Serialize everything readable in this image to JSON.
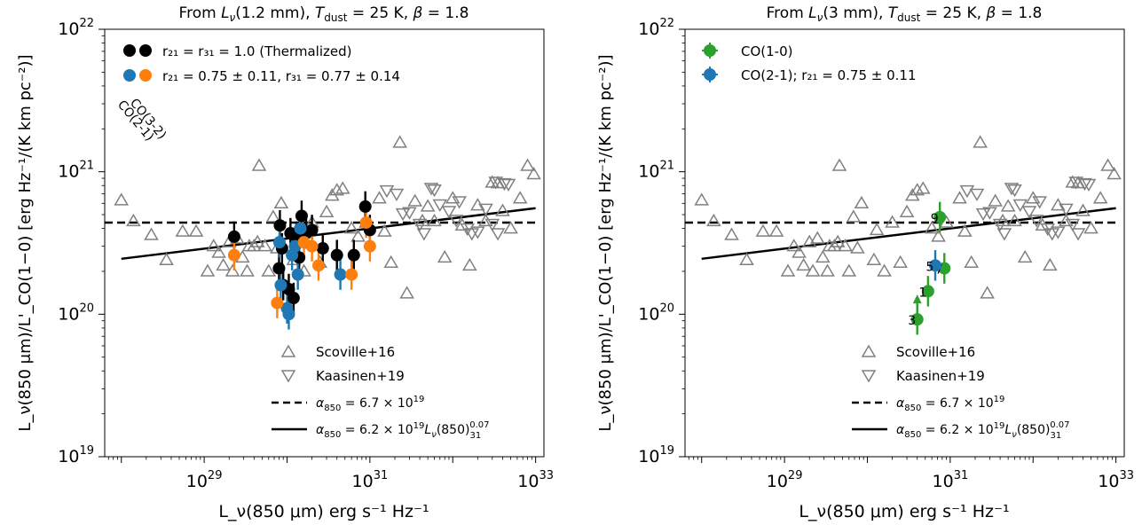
{
  "figure": {
    "panels": [
      {
        "title": "From L_ν(1.2 mm), T_dust = 25 K, β = 1.8",
        "title_parts": {
          "pre": "From ",
          "L": "L",
          "nu": "ν",
          "mid": "(1.2 mm), ",
          "T": "T",
          "dust": "dust",
          "post1": " = 25 K, ",
          "beta": "β",
          "post2": " = 1.8"
        },
        "ylabel": "L_ν(850 μm)/L'_CO(1−0) [erg Hz⁻¹/(K km pc⁻²)]",
        "xlabel": "L_ν(850 μm) erg s⁻¹ Hz⁻¹"
      },
      {
        "title": "From L_ν(3 mm), T_dust = 25 K, β = 1.8",
        "title_parts": {
          "pre": "From ",
          "L": "L",
          "nu": "ν",
          "mid": "(3 mm), ",
          "T": "T",
          "dust": "dust",
          "post1": " = 25 K, ",
          "beta": "β",
          "post2": " = 1.8"
        },
        "ylabel": "L_ν(850 μm)/L'_CO(1−0) [erg Hz⁻¹/(K km pc⁻²)]",
        "xlabel": "L_ν(850 μm) erg s⁻¹ Hz⁻¹"
      }
    ],
    "x_tick_labels": [
      {
        "base": "10",
        "exp": "29",
        "value": 1e+29
      },
      {
        "base": "10",
        "exp": "31",
        "value": 1e+31
      },
      {
        "base": "10",
        "exp": "33",
        "value": 1e+33
      }
    ],
    "y_tick_labels": [
      {
        "base": "10",
        "exp": "19",
        "value": 1e+19
      },
      {
        "base": "10",
        "exp": "20",
        "value": 1e+20
      },
      {
        "base": "10",
        "exp": "21",
        "value": 1e+21
      },
      {
        "base": "10",
        "exp": "22",
        "value": 1e+22
      }
    ],
    "legend_left": {
      "thermalized": "r₂₁ = r₃₁ = 1.0 (Thermalized)",
      "measured": "r₂₁ = 0.75 ± 0.11, r₃₁ = 0.77 ± 0.14",
      "co32": "CO(3-2)",
      "co21": "CO(2-1)"
    },
    "legend_right": {
      "co10": "CO(1-0)",
      "co21": "CO(2-1); r₂₁ = 0.75 ± 0.11"
    },
    "legend_lower": {
      "scoville": "Scoville+16",
      "kaasinen": "Kaasinen+19",
      "alpha_const": "α₈₅₀ = 6.7 × 10¹⁹",
      "alpha_fit": "α₈₅₀ = 6.2 × 10¹⁹ L_ν(850)₃₁^0.07"
    },
    "source_labels": [
      "9",
      "5",
      "7",
      "1",
      "3"
    ]
  },
  "colors": {
    "thermalized": "#000000",
    "co21": "#1f77b4",
    "co32": "#ff7f0e",
    "co10": "#2ca02c",
    "comparison": "#808080"
  },
  "chart_data": [
    {
      "type": "scatter",
      "title": "From L_ν(1.2 mm), T_dust = 25 K, β = 1.8",
      "xlabel": "L_ν(850 μm) erg s⁻¹ Hz⁻¹",
      "ylabel": "L_ν(850 μm)/L'_CO(1−0) [erg Hz⁻¹/(K km pc⁻²)]",
      "xscale": "log",
      "yscale": "log",
      "xlim": [
        6.3e+27,
        1.26e+33
      ],
      "ylim": [
        1e+19,
        1e+22
      ],
      "grid": false,
      "legend": "upper-left and lower-center",
      "series": [
        {
          "name": "Scoville+16",
          "marker": "triangle-up",
          "color": "#808080",
          "points": [
            [
              1e+28,
              6.3e+20
            ],
            [
              1.4e+28,
              4.5e+20
            ],
            [
              2.3e+28,
              3.6e+20
            ],
            [
              3.5e+28,
              2.4e+20
            ],
            [
              5.5e+28,
              3.8e+20
            ],
            [
              8e+28,
              3.8e+20
            ],
            [
              1.1e+29,
              2e+20
            ],
            [
              1.3e+29,
              3e+20
            ],
            [
              1.5e+29,
              2.7e+20
            ],
            [
              1.7e+29,
              2.2e+20
            ],
            [
              2e+29,
              3.2e+20
            ],
            [
              2.2e+29,
              2e+20
            ],
            [
              2.5e+29,
              3.4e+20
            ],
            [
              2.9e+29,
              2.5e+20
            ],
            [
              3.3e+29,
              2e+20
            ],
            [
              3.5e+29,
              3e+20
            ],
            [
              4e+29,
              3e+20
            ],
            [
              4.4e+29,
              3.2e+20
            ],
            [
              4.6e+29,
              1.1e+21
            ],
            [
              5.4e+29,
              3e+20
            ],
            [
              6e+29,
              2e+20
            ],
            [
              6.8e+29,
              4.8e+20
            ],
            [
              7.6e+29,
              2.9e+20
            ],
            [
              8.5e+29,
              6e+20
            ],
            [
              1.2e+30,
              2.4e+20
            ],
            [
              1.3e+30,
              3.9e+20
            ],
            [
              1.6e+30,
              2e+20
            ],
            [
              2e+30,
              4.4e+20
            ],
            [
              2.5e+30,
              2.3e+20
            ],
            [
              3e+30,
              5.2e+20
            ],
            [
              3.5e+30,
              6.8e+20
            ],
            [
              4e+30,
              7.4e+20
            ],
            [
              4.7e+30,
              7.6e+20
            ],
            [
              6e+30,
              4e+20
            ],
            [
              7.2e+30,
              3.5e+20
            ],
            [
              9e+30,
              4.4e+20
            ],
            [
              1.3e+31,
              6.5e+20
            ],
            [
              1.5e+31,
              3.8e+20
            ],
            [
              1.8e+31,
              2.3e+20
            ],
            [
              2.3e+31,
              1.6e+21
            ],
            [
              2.8e+31,
              1.4e+20
            ],
            [
              3.5e+31,
              6.2e+20
            ],
            [
              4.3e+31,
              4.5e+20
            ],
            [
              5e+31,
              5.7e+20
            ],
            [
              6e+31,
              4.5e+20
            ],
            [
              8e+31,
              2.5e+20
            ],
            [
              1e+32,
              6.5e+20
            ],
            [
              1.3e+32,
              4.2e+20
            ],
            [
              1.6e+32,
              2.2e+20
            ],
            [
              2e+32,
              5.8e+20
            ],
            [
              2.5e+32,
              4.5e+20
            ],
            [
              3e+32,
              8.4e+20
            ],
            [
              3.5e+32,
              8.3e+20
            ],
            [
              4e+32,
              5.3e+20
            ],
            [
              5e+32,
              4e+20
            ],
            [
              6.5e+32,
              6.5e+20
            ],
            [
              8e+32,
              1.1e+21
            ],
            [
              9.5e+32,
              9.6e+20
            ]
          ]
        },
        {
          "name": "Kaasinen+19",
          "marker": "triangle-down",
          "color": "#808080",
          "points": [
            [
              1.6e+31,
              7.4e+20
            ],
            [
              2.1e+31,
              7e+20
            ],
            [
              2.5e+31,
              5.1e+20
            ],
            [
              3e+31,
              5.2e+20
            ],
            [
              4e+31,
              4.3e+20
            ],
            [
              4.5e+31,
              3.7e+20
            ],
            [
              5.5e+31,
              7.7e+20
            ],
            [
              6e+31,
              7.5e+20
            ],
            [
              7e+31,
              5.9e+20
            ],
            [
              9e+31,
              5.3e+20
            ],
            [
              1.1e+32,
              4.6e+20
            ],
            [
              1.2e+32,
              6.2e+20
            ],
            [
              1.5e+32,
              4e+20
            ],
            [
              1.7e+32,
              3.7e+20
            ],
            [
              2e+32,
              3.8e+20
            ],
            [
              2.5e+32,
              5.5e+20
            ],
            [
              3e+32,
              4.3e+20
            ],
            [
              3.5e+32,
              3.7e+20
            ],
            [
              4.2e+32,
              8.3e+20
            ],
            [
              4.7e+32,
              8.2e+20
            ],
            [
              3.3e+32,
              8.5e+20
            ]
          ]
        },
        {
          "name": "r₂₁ = r₃₁ = 1.0 (Thermalized)",
          "marker": "circle",
          "color": "#000000",
          "points": [
            [
              2.3e+29,
              3.5e+20
            ],
            [
              8e+29,
              2.1e+20
            ],
            [
              8.2e+29,
              4.2e+20
            ],
            [
              8.7e+29,
              2.9e+20
            ],
            [
              9e+29,
              1.6e+20
            ],
            [
              1.05e+30,
              1.5e+20
            ],
            [
              1.1e+30,
              3.7e+20
            ],
            [
              1.2e+30,
              1.3e+20
            ],
            [
              1.3e+30,
              3.5e+20
            ],
            [
              1.4e+30,
              2.5e+20
            ],
            [
              1.5e+30,
              4.9e+20
            ],
            [
              1.7e+30,
              3.7e+20
            ],
            [
              2e+30,
              3.9e+20
            ],
            [
              2.7e+30,
              2.9e+20
            ],
            [
              4e+30,
              2.6e+20
            ],
            [
              6.4e+30,
              2.6e+20
            ],
            [
              8.8e+30,
              5.7e+20
            ],
            [
              1e+31,
              3.9e+20
            ]
          ]
        },
        {
          "name": "CO(2-1)",
          "marker": "circle",
          "color": "#1f77b4",
          "points": [
            [
              8.1e+29,
              3.2e+20
            ],
            [
              8.4e+29,
              1.6e+20
            ],
            [
              1e+30,
              1.1e+20
            ],
            [
              1.05e+30,
              1e+20
            ],
            [
              1.15e+30,
              2.6e+20
            ],
            [
              1.25e+30,
              3e+20
            ],
            [
              1.35e+30,
              1.9e+20
            ],
            [
              1.45e+30,
              4e+20
            ],
            [
              4.4e+30,
              1.9e+20
            ]
          ]
        },
        {
          "name": "CO(3-2)",
          "marker": "circle",
          "color": "#ff7f0e",
          "points": [
            [
              2.3e+29,
              2.6e+20
            ],
            [
              7.6e+29,
              1.2e+20
            ],
            [
              1.6e+30,
              3.2e+20
            ],
            [
              2e+30,
              3e+20
            ],
            [
              2.4e+30,
              2.2e+20
            ],
            [
              6e+30,
              1.9e+20
            ],
            [
              9e+30,
              4.4e+20
            ],
            [
              1e+31,
              3e+20
            ]
          ]
        },
        {
          "name": "α₈₅₀ = 6.7 × 10¹⁹",
          "line": "dashed",
          "color": "#000000",
          "x": [
            6.3e+27,
            1e+33
          ],
          "y": [
            4.4e+20,
            4.4e+20
          ]
        },
        {
          "name": "α₈₅₀ = 6.2 × 10¹⁹ L_ν(850)₃₁^0.07",
          "line": "solid",
          "color": "#000000",
          "x": [
            1e+28,
            1e+33
          ],
          "y": [
            2.45e+20,
            5.55e+20
          ]
        }
      ]
    },
    {
      "type": "scatter",
      "title": "From L_ν(3 mm), T_dust = 25 K, β = 1.8",
      "xlabel": "L_ν(850 μm) erg s⁻¹ Hz⁻¹",
      "ylabel": "L_ν(850 μm)/L'_CO(1−0) [erg Hz⁻¹/(K km pc⁻²)]",
      "xscale": "log",
      "yscale": "log",
      "xlim": [
        6.3e+27,
        1.26e+33
      ],
      "ylim": [
        1e+19,
        1e+22
      ],
      "grid": false,
      "legend": "upper-left and lower-center",
      "series": [
        {
          "name": "Scoville+16",
          "marker": "triangle-up",
          "color": "#808080",
          "points": "same as left panel"
        },
        {
          "name": "Kaasinen+19",
          "marker": "triangle-down",
          "color": "#808080",
          "points": "same as left panel"
        },
        {
          "name": "CO(1-0)",
          "marker": "circle",
          "color": "#2ca02c",
          "points": [
            [
              4e+30,
              9.2e+19,
              "3"
            ],
            [
              5.4e+30,
              1.45e+20,
              "1"
            ],
            [
              7.5e+30,
              4.8e+20,
              "9"
            ],
            [
              8.5e+30,
              2.1e+20,
              "7"
            ]
          ]
        },
        {
          "name": "CO(2-1); r₂₁ = 0.75 ± 0.11",
          "marker": "circle",
          "color": "#1f77b4",
          "points": [
            [
              6.6e+30,
              2.2e+20,
              "5"
            ]
          ]
        },
        {
          "name": "α₈₅₀ = 6.7 × 10¹⁹",
          "line": "dashed",
          "color": "#000000",
          "x": [
            6.3e+27,
            1e+33
          ],
          "y": [
            4.4e+20,
            4.4e+20
          ]
        },
        {
          "name": "α₈₅₀ = 6.2 × 10¹⁹ L_ν(850)₃₁^0.07",
          "line": "solid",
          "color": "#000000",
          "x": [
            1e+28,
            1e+33
          ],
          "y": [
            2.45e+20,
            5.55e+20
          ]
        }
      ]
    }
  ]
}
